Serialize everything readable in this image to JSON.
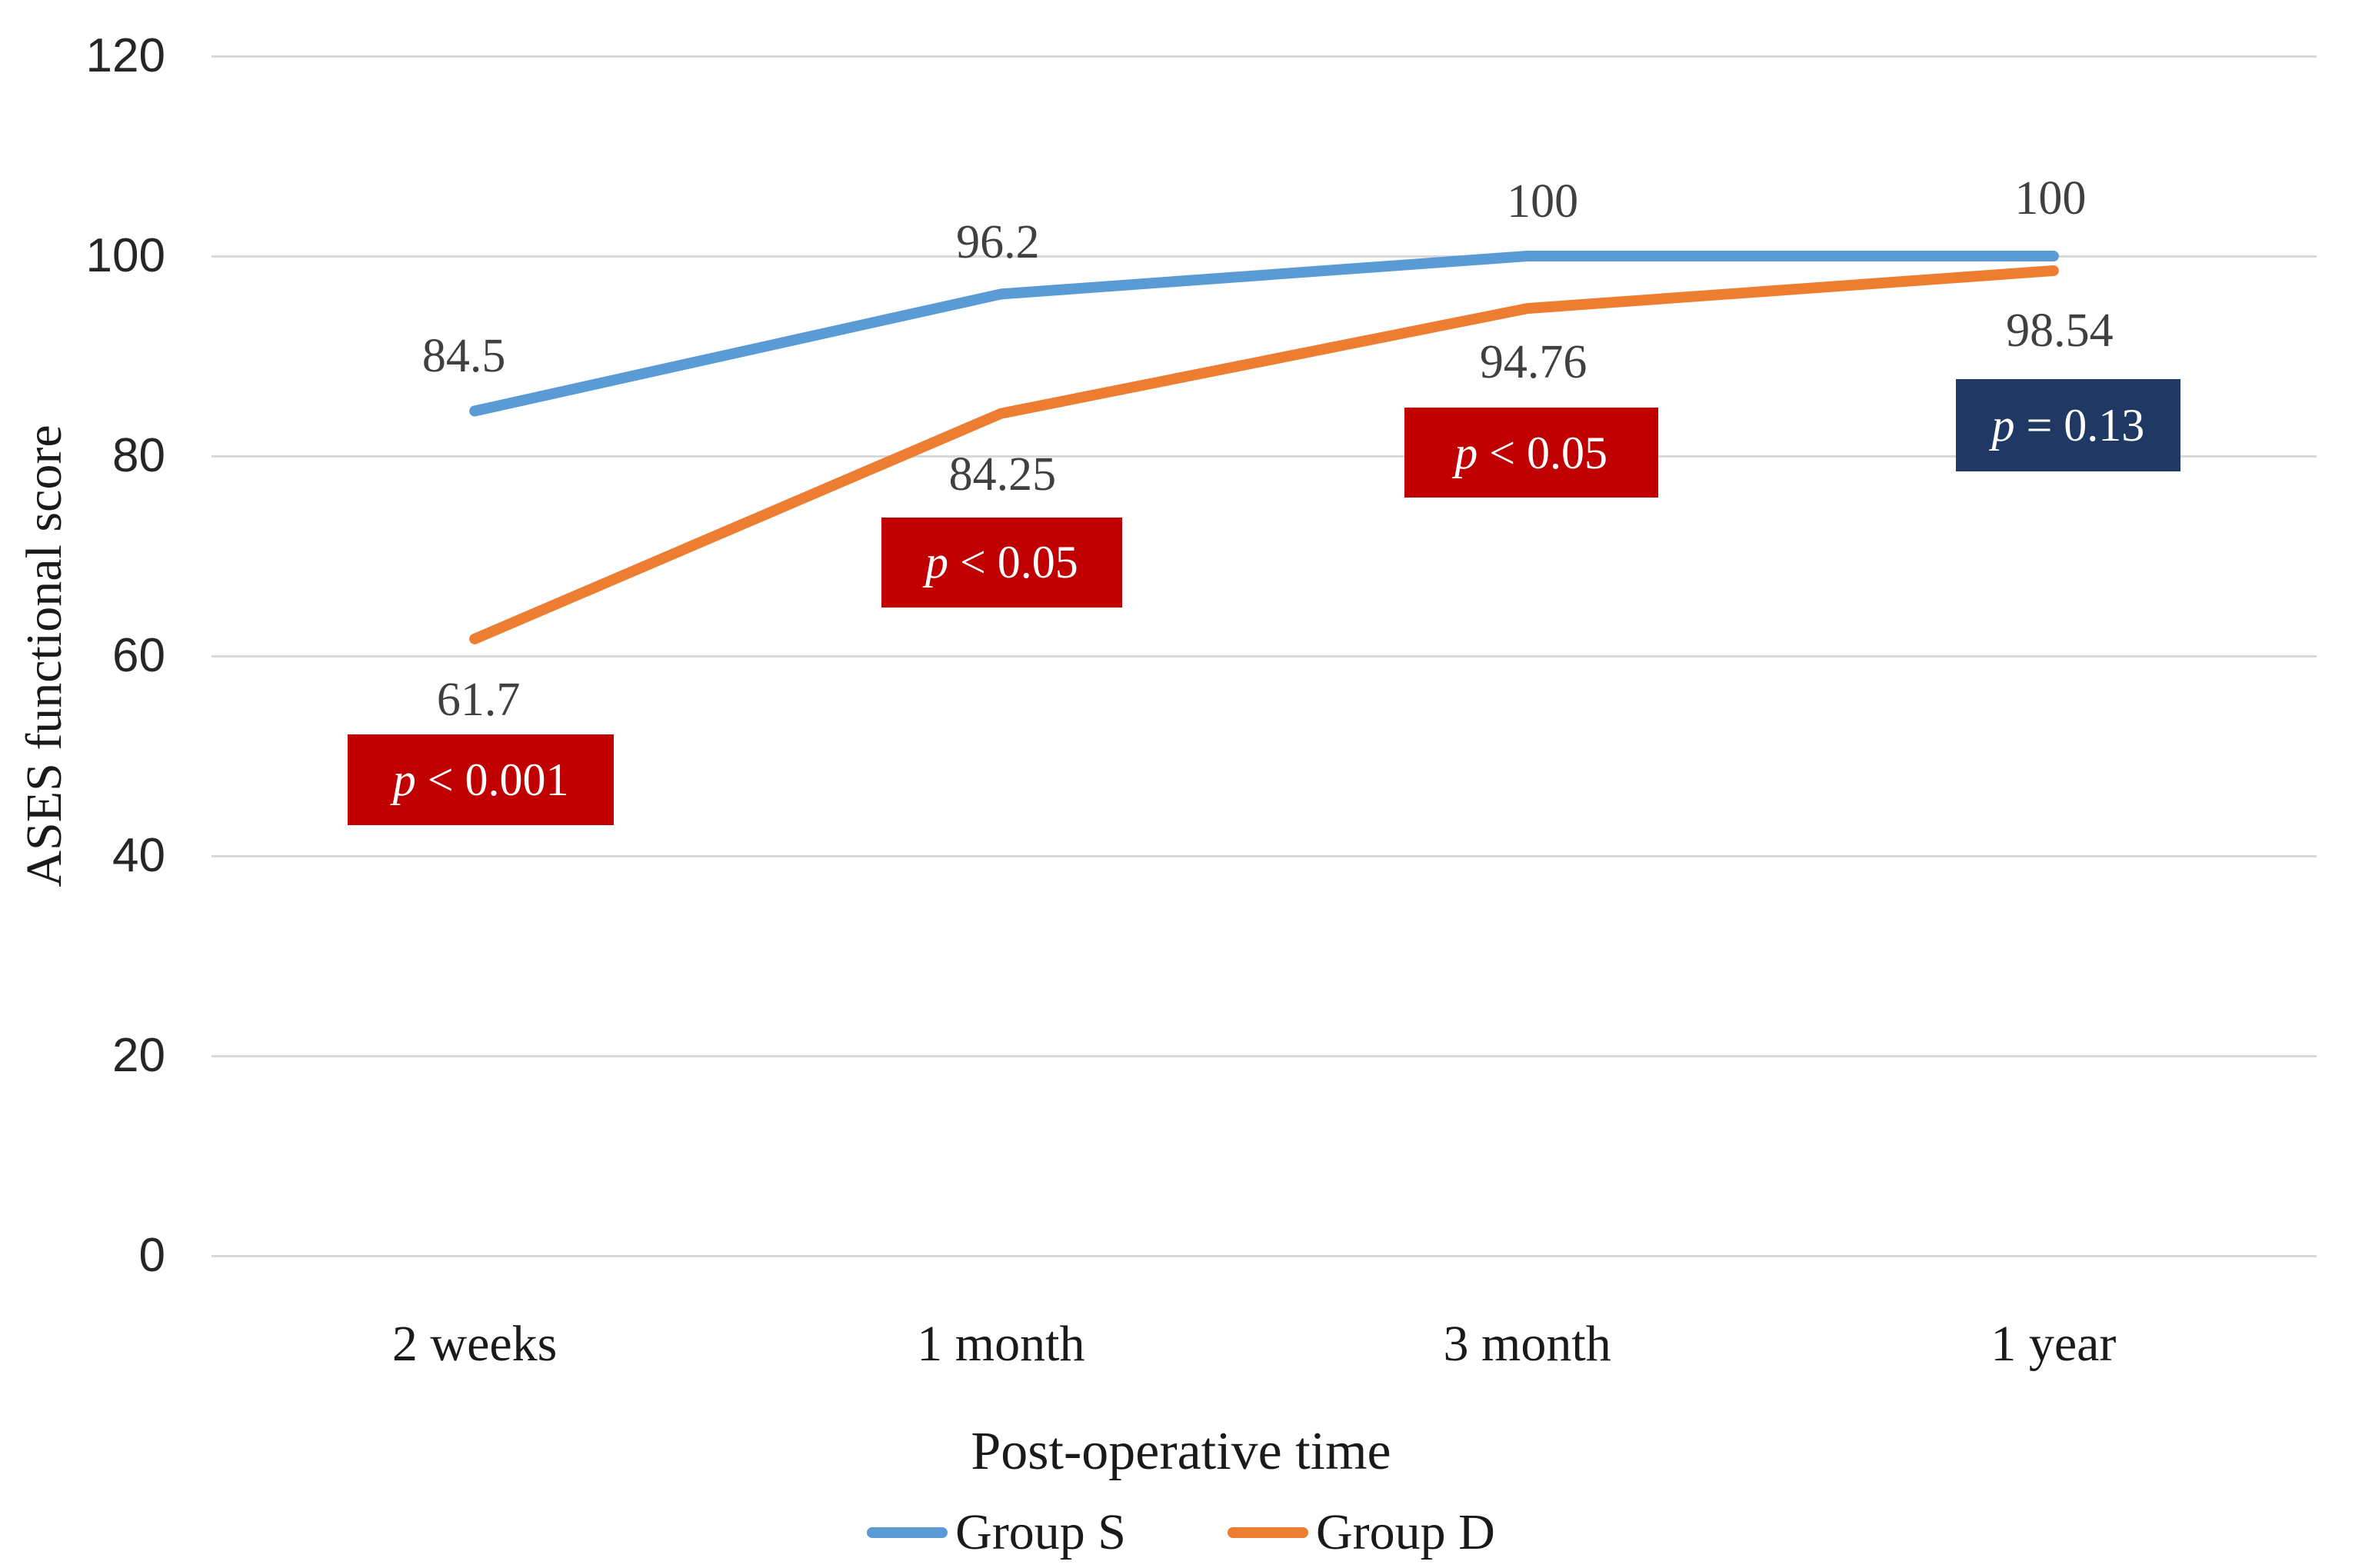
{
  "chart_data": {
    "type": "line",
    "title": "",
    "categories": [
      "2 weeks",
      "1 month",
      "3 month",
      "1 year"
    ],
    "series": [
      {
        "name": "Group S",
        "color": "#5B9BD5",
        "values": [
          84.5,
          96.2,
          100,
          100
        ]
      },
      {
        "name": "Group D",
        "color": "#ED7D31",
        "values": [
          61.7,
          84.25,
          94.76,
          98.54
        ]
      }
    ],
    "data_labels_group_s": [
      "84.5",
      "96.2",
      "100",
      "100"
    ],
    "data_labels_group_d": [
      "61.7",
      "84.25",
      "94.76",
      "98.54"
    ],
    "xlabel": "Post-operative time",
    "ylabel": "ASES functional score",
    "ylim": [
      0,
      120
    ],
    "yticks": [
      0,
      20,
      40,
      60,
      80,
      100,
      120
    ],
    "grid": "horizontal",
    "gridline_color": "#D9D9D9",
    "data_label_color": "#404040",
    "legend_position": "bottom",
    "annotations": [
      {
        "category": "2 weeks",
        "text": "p < 0.001",
        "bg": "#C00000",
        "fg": "#FFFFFF"
      },
      {
        "category": "1 month",
        "text": "p < 0.05",
        "bg": "#C00000",
        "fg": "#FFFFFF"
      },
      {
        "category": "3 month",
        "text": "p < 0.05",
        "bg": "#C00000",
        "fg": "#FFFFFF"
      },
      {
        "category": "1 year",
        "text": "p = 0.13",
        "bg": "#1F3864",
        "fg": "#FFFFFF"
      }
    ]
  }
}
